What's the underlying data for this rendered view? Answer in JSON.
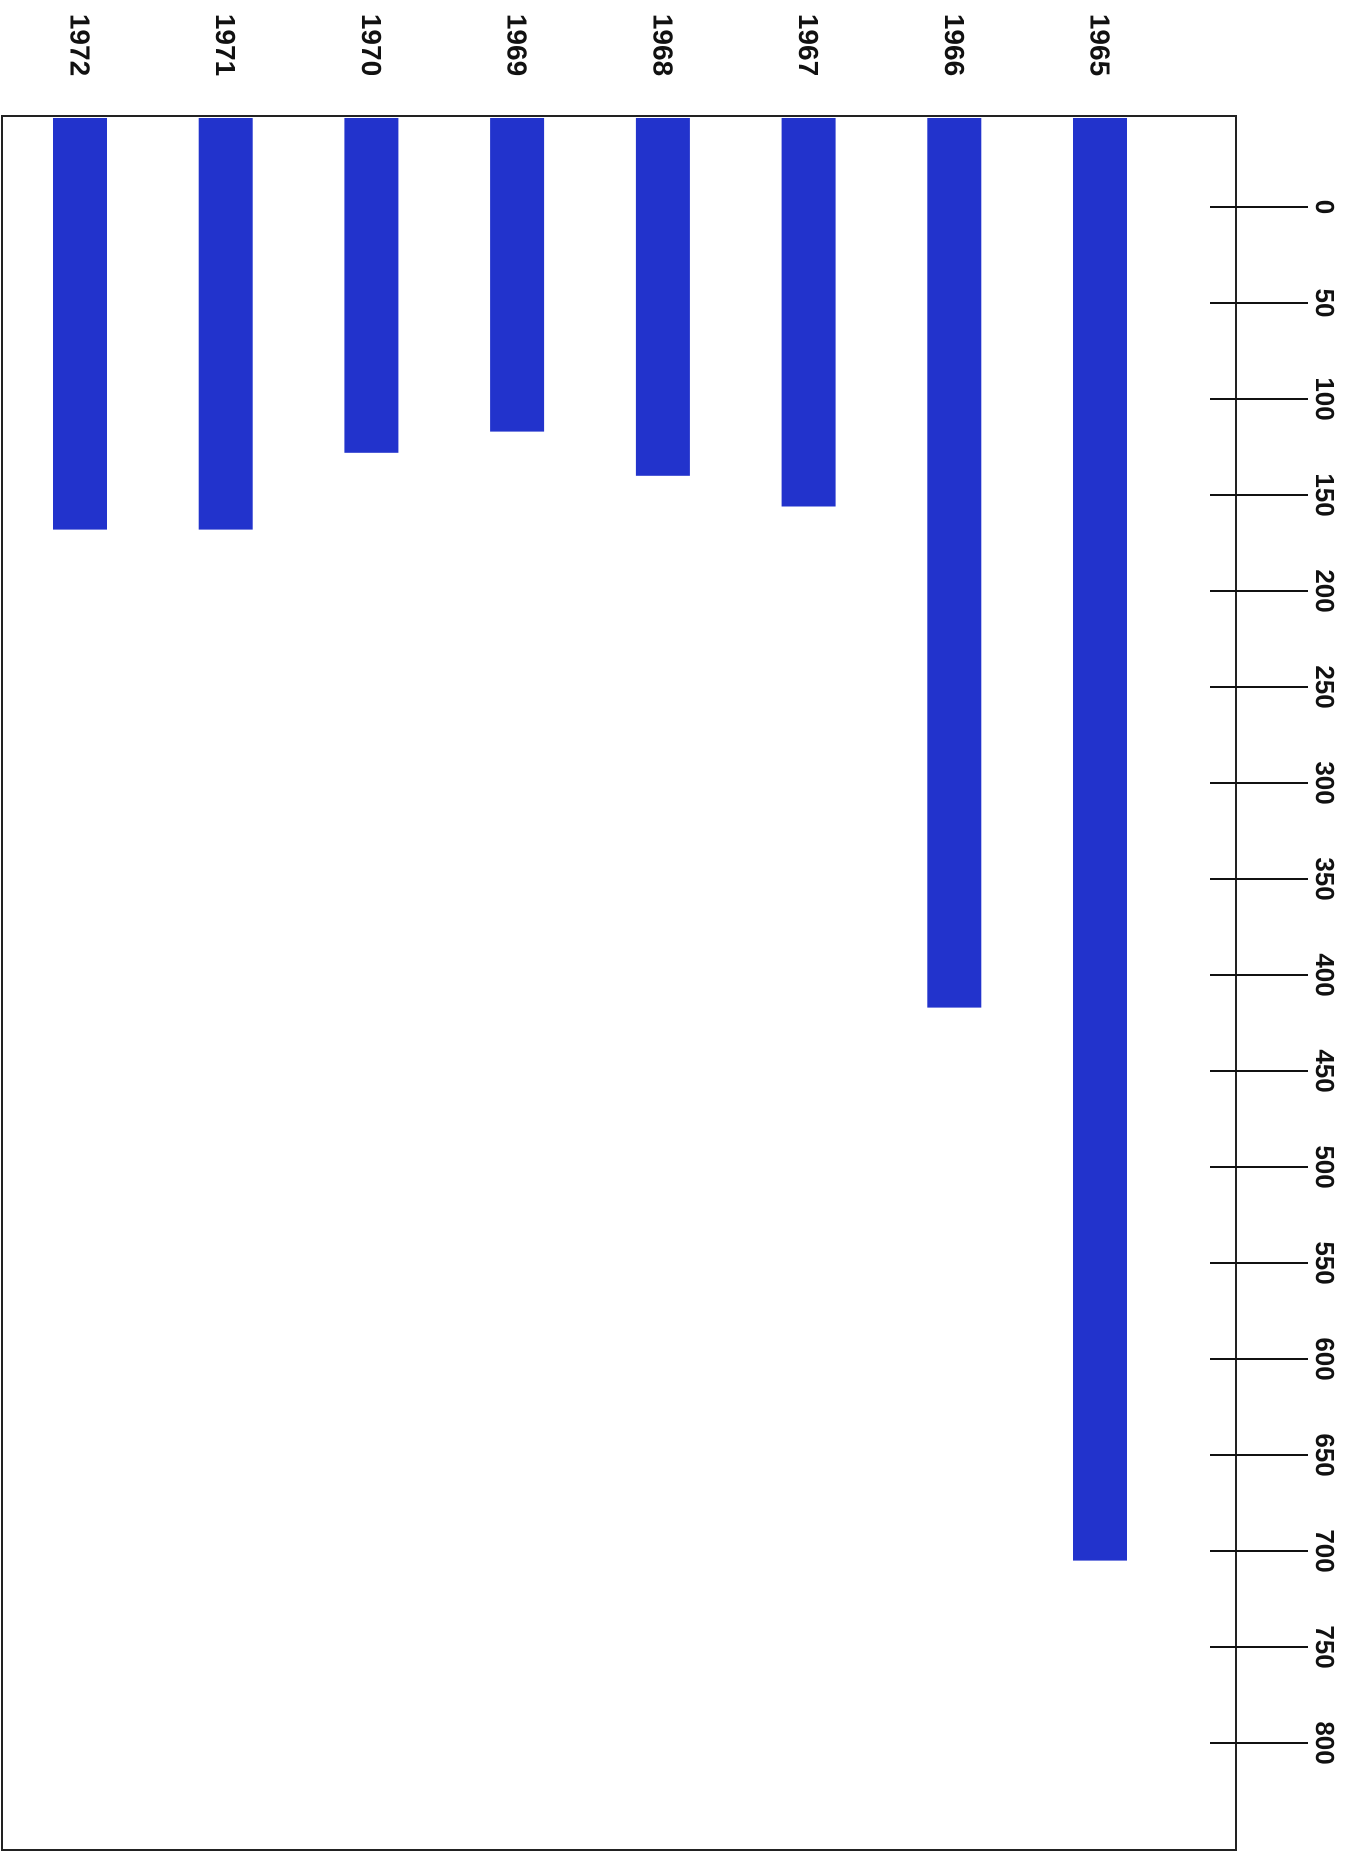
{
  "chart_data": {
    "type": "bar",
    "orientation": "horizontal",
    "categories": [
      "1965",
      "1966",
      "1967",
      "1968",
      "1969",
      "1970",
      "1971",
      "1972"
    ],
    "values": [
      705,
      417,
      156,
      140,
      117,
      128,
      168,
      168
    ],
    "xlim": [
      0,
      800
    ],
    "x_ticks": [
      "0",
      "50",
      "100",
      "150",
      "200",
      "250",
      "300",
      "350",
      "400",
      "450",
      "500",
      "550",
      "600",
      "650",
      "700",
      "750",
      "800"
    ],
    "title": "",
    "xlabel": "",
    "ylabel": "",
    "grid": false,
    "bar_color": "#2233cc",
    "rotation_deg": 90
  }
}
